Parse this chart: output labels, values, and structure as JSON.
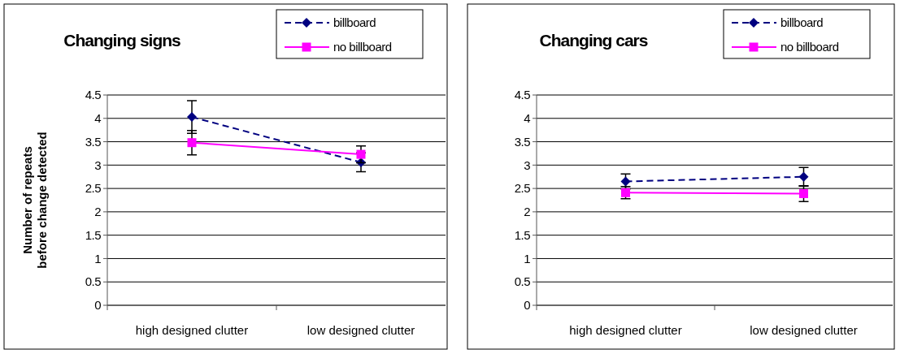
{
  "chart_data": [
    {
      "type": "line",
      "title": "Changing signs",
      "ylabel": "Number of repeats before change detected",
      "categories": [
        "high designed clutter",
        "low designed clutter"
      ],
      "ylim": [
        0,
        4.5
      ],
      "yticks": [
        0,
        0.5,
        1,
        1.5,
        2,
        2.5,
        3,
        3.5,
        4,
        4.5
      ],
      "grid": "y",
      "legend": "top right",
      "series": [
        {
          "name": "billboard",
          "color": "#000080",
          "values": [
            4.03,
            3.06
          ],
          "errors": [
            0.35,
            0.2
          ],
          "marker": "diamond",
          "line_style": "dashed"
        },
        {
          "name": "no billboard",
          "color": "#ff00ff",
          "values": [
            3.48,
            3.23
          ],
          "errors": [
            0.26,
            0.18
          ],
          "marker": "square",
          "line_style": "solid"
        }
      ]
    },
    {
      "type": "line",
      "title": "Changing cars",
      "categories": [
        "high designed clutter",
        "low designed clutter"
      ],
      "ylim": [
        0,
        4.5
      ],
      "yticks": [
        0,
        0.5,
        1,
        1.5,
        2,
        2.5,
        3,
        3.5,
        4,
        4.5
      ],
      "grid": "y",
      "legend": "top right",
      "series": [
        {
          "name": "billboard",
          "color": "#000080",
          "values": [
            2.65,
            2.75
          ],
          "errors": [
            0.16,
            0.2
          ],
          "marker": "diamond",
          "line_style": "dashed"
        },
        {
          "name": "no billboard",
          "color": "#ff00ff",
          "values": [
            2.41,
            2.39
          ],
          "errors": [
            0.13,
            0.17
          ],
          "marker": "square",
          "line_style": "solid"
        }
      ]
    }
  ]
}
